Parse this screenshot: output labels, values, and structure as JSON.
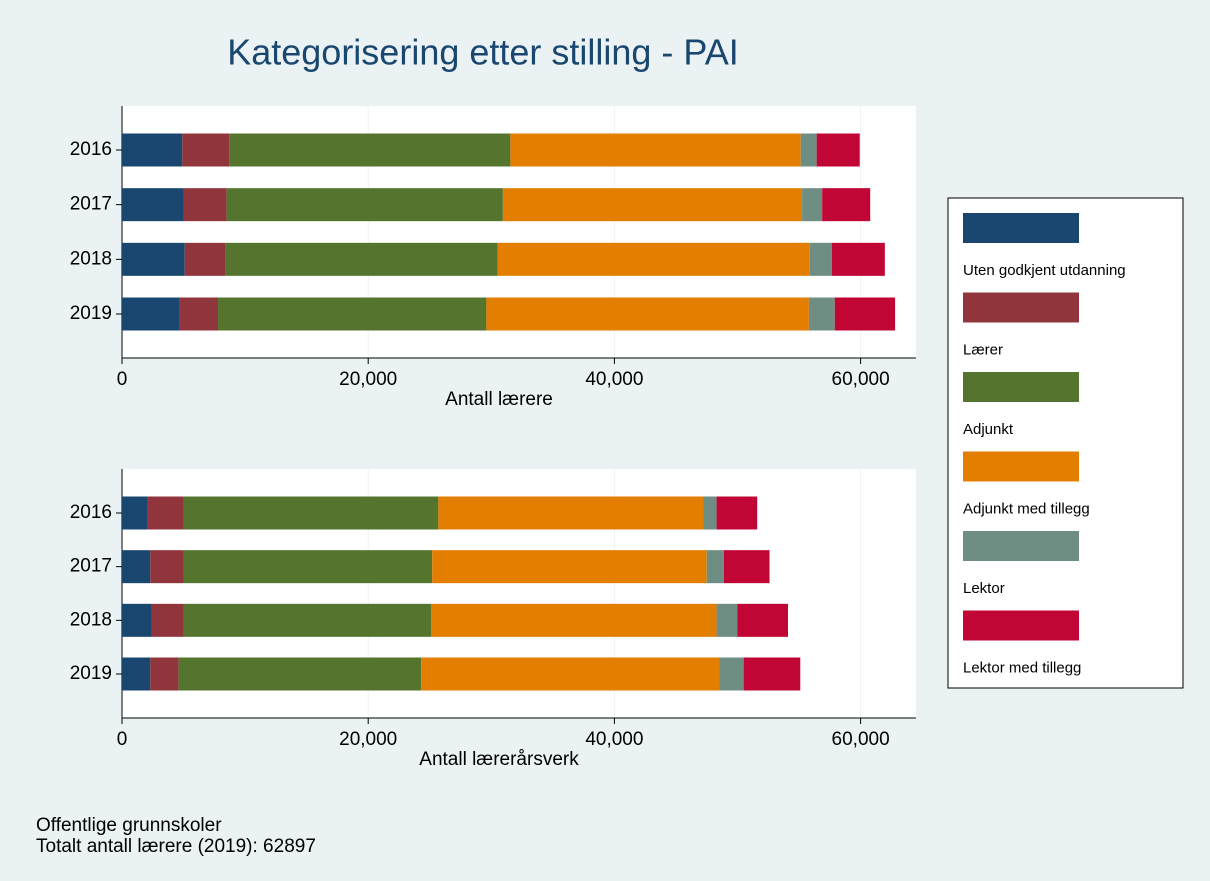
{
  "title": "Kategorisering etter stilling - PAI",
  "notes": [
    "Offentlige grunnskoler",
    "Totalt antall lærere (2019): 62897"
  ],
  "chart_data": [
    {
      "type": "bar",
      "orientation": "horizontal",
      "stacked": true,
      "grid": true,
      "xlabel": "Antall lærere",
      "categories": [
        "2016",
        "2017",
        "2018",
        "2019"
      ],
      "xlim": [
        0,
        64500
      ],
      "xticks": [
        0,
        {
          "value": 20000,
          "label": "20,000"
        },
        {
          "value": 40000,
          "label": "40,000"
        },
        {
          "value": 60000,
          "label": "60,000"
        }
      ],
      "legend": "right",
      "series": [
        {
          "name": "Uten godkjent utdanning",
          "color": "#1a476f",
          "values": [
            4900,
            5000,
            5100,
            4700
          ]
        },
        {
          "name": "Lærer",
          "color": "#90353b",
          "values": [
            3800,
            3500,
            3300,
            3100
          ]
        },
        {
          "name": "Adjunkt",
          "color": "#55752f",
          "values": [
            22850,
            22440,
            22100,
            21800
          ]
        },
        {
          "name": "Adjunkt med tillegg",
          "color": "#e37e00",
          "values": [
            23580,
            24310,
            25370,
            26200
          ]
        },
        {
          "name": "Lektor",
          "color": "#6e8e84",
          "values": [
            1300,
            1630,
            1800,
            2100
          ]
        },
        {
          "name": "Lektor med tillegg",
          "color": "#c10534",
          "values": [
            3500,
            3900,
            4300,
            4900
          ]
        }
      ]
    },
    {
      "type": "bar",
      "orientation": "horizontal",
      "stacked": true,
      "grid": true,
      "xlabel": "Antall lærerårsverk",
      "categories": [
        "2016",
        "2017",
        "2018",
        "2019"
      ],
      "xlim": [
        0,
        64500
      ],
      "xticks": [
        0,
        {
          "value": 20000,
          "label": "20,000"
        },
        {
          "value": 40000,
          "label": "40,000"
        },
        {
          "value": 60000,
          "label": "60,000"
        }
      ],
      "series": [
        {
          "color": "#1a476f",
          "values": [
            2100,
            2300,
            2400,
            2300
          ]
        },
        {
          "color": "#90353b",
          "values": [
            2900,
            2700,
            2600,
            2300
          ]
        },
        {
          "color": "#55752f",
          "values": [
            20700,
            20200,
            20100,
            19700
          ]
        },
        {
          "color": "#e37e00",
          "values": [
            21500,
            22300,
            23200,
            24200
          ]
        },
        {
          "color": "#6e8e84",
          "values": [
            1100,
            1400,
            1700,
            2000
          ]
        },
        {
          "color": "#c10534",
          "values": [
            3300,
            3700,
            4100,
            4600
          ]
        }
      ]
    }
  ]
}
